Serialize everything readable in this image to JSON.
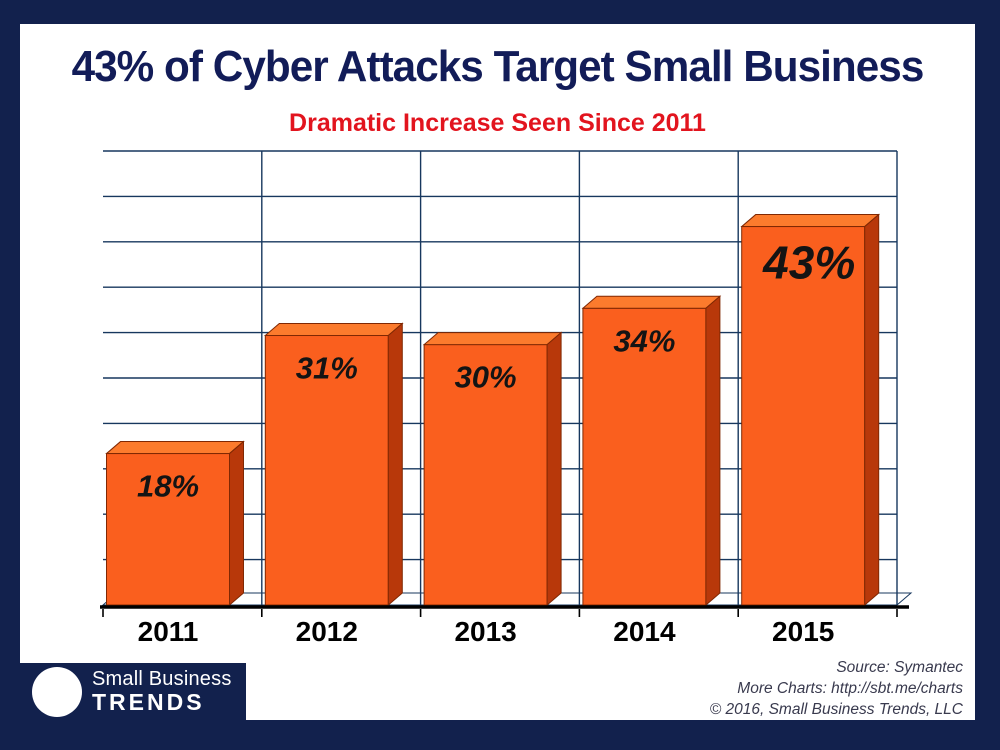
{
  "header": {
    "title": "43% of Cyber Attacks Target Small Business",
    "subtitle": "Dramatic Increase Seen Since 2011"
  },
  "chart_data": {
    "type": "bar",
    "title": "43% of Cyber Attacks Target Small Business",
    "subtitle": "Dramatic Increase Seen Since 2011",
    "categories": [
      "2011",
      "2012",
      "2013",
      "2014",
      "2015"
    ],
    "values": [
      18,
      31,
      30,
      34,
      43
    ],
    "value_labels": [
      "18%",
      "31%",
      "30%",
      "34%",
      "43%"
    ],
    "xlabel": "",
    "ylabel": "",
    "ylim": [
      0,
      50
    ],
    "grid_step": 5,
    "grid": true,
    "legend": "none",
    "highlight_index": 4,
    "style_3d": true,
    "colors": {
      "bar_front": "#FA5F1E",
      "bar_top": "#FC7B2D",
      "bar_side": "#B8380A",
      "bar_outline": "#802803",
      "gridline": "#17375E",
      "axis": "#000000",
      "value_label": "#141414",
      "category_label": "#000000"
    }
  },
  "footer": {
    "logo": {
      "line1": "Small Business",
      "line2": "TRENDS"
    },
    "credits": [
      "Source: Symantec",
      "More Charts: http://sbt.me/charts",
      "© 2016, Small Business Trends, LLC"
    ]
  },
  "colors": {
    "border_navy": "#12214D",
    "title_navy": "#121C58",
    "subtitle_red": "#E2141E"
  }
}
